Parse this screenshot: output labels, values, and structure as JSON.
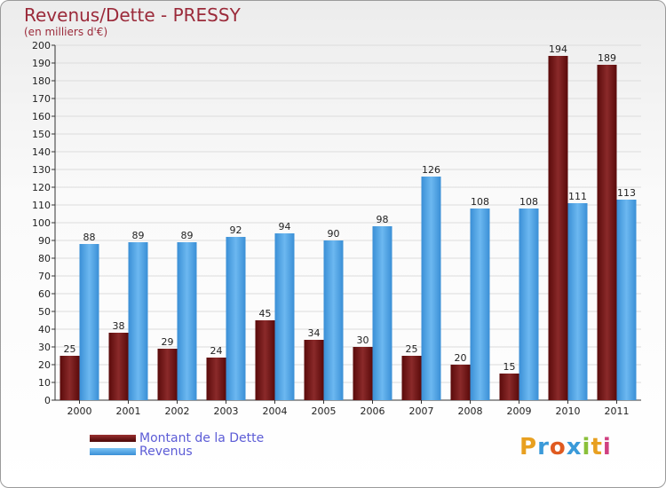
{
  "chart_data": {
    "type": "bar",
    "title": "Revenus/Dette - PRESSY",
    "subtitle": "(en milliers d'€)",
    "categories": [
      "2000",
      "2001",
      "2002",
      "2003",
      "2004",
      "2005",
      "2006",
      "2007",
      "2008",
      "2009",
      "2010",
      "2011"
    ],
    "series": [
      {
        "name": "Montant de la Dette",
        "color": "#7a1a1a",
        "values": [
          25,
          38,
          29,
          24,
          45,
          34,
          30,
          25,
          20,
          15,
          194,
          189
        ]
      },
      {
        "name": "Revenus",
        "color": "#4a9fe0",
        "values": [
          88,
          89,
          89,
          92,
          94,
          90,
          98,
          126,
          108,
          108,
          111,
          113
        ]
      }
    ],
    "ylim": [
      0,
      200
    ],
    "ytick_step": 10,
    "grid": true,
    "legend_position": "bottom-left"
  },
  "branding": {
    "logo_text": "Proxiti",
    "logo_colors": [
      "#e8a020",
      "#3a9ad9",
      "#e05a20",
      "#3a9ad9",
      "#8ac03a",
      "#e8a020",
      "#d04080"
    ]
  }
}
